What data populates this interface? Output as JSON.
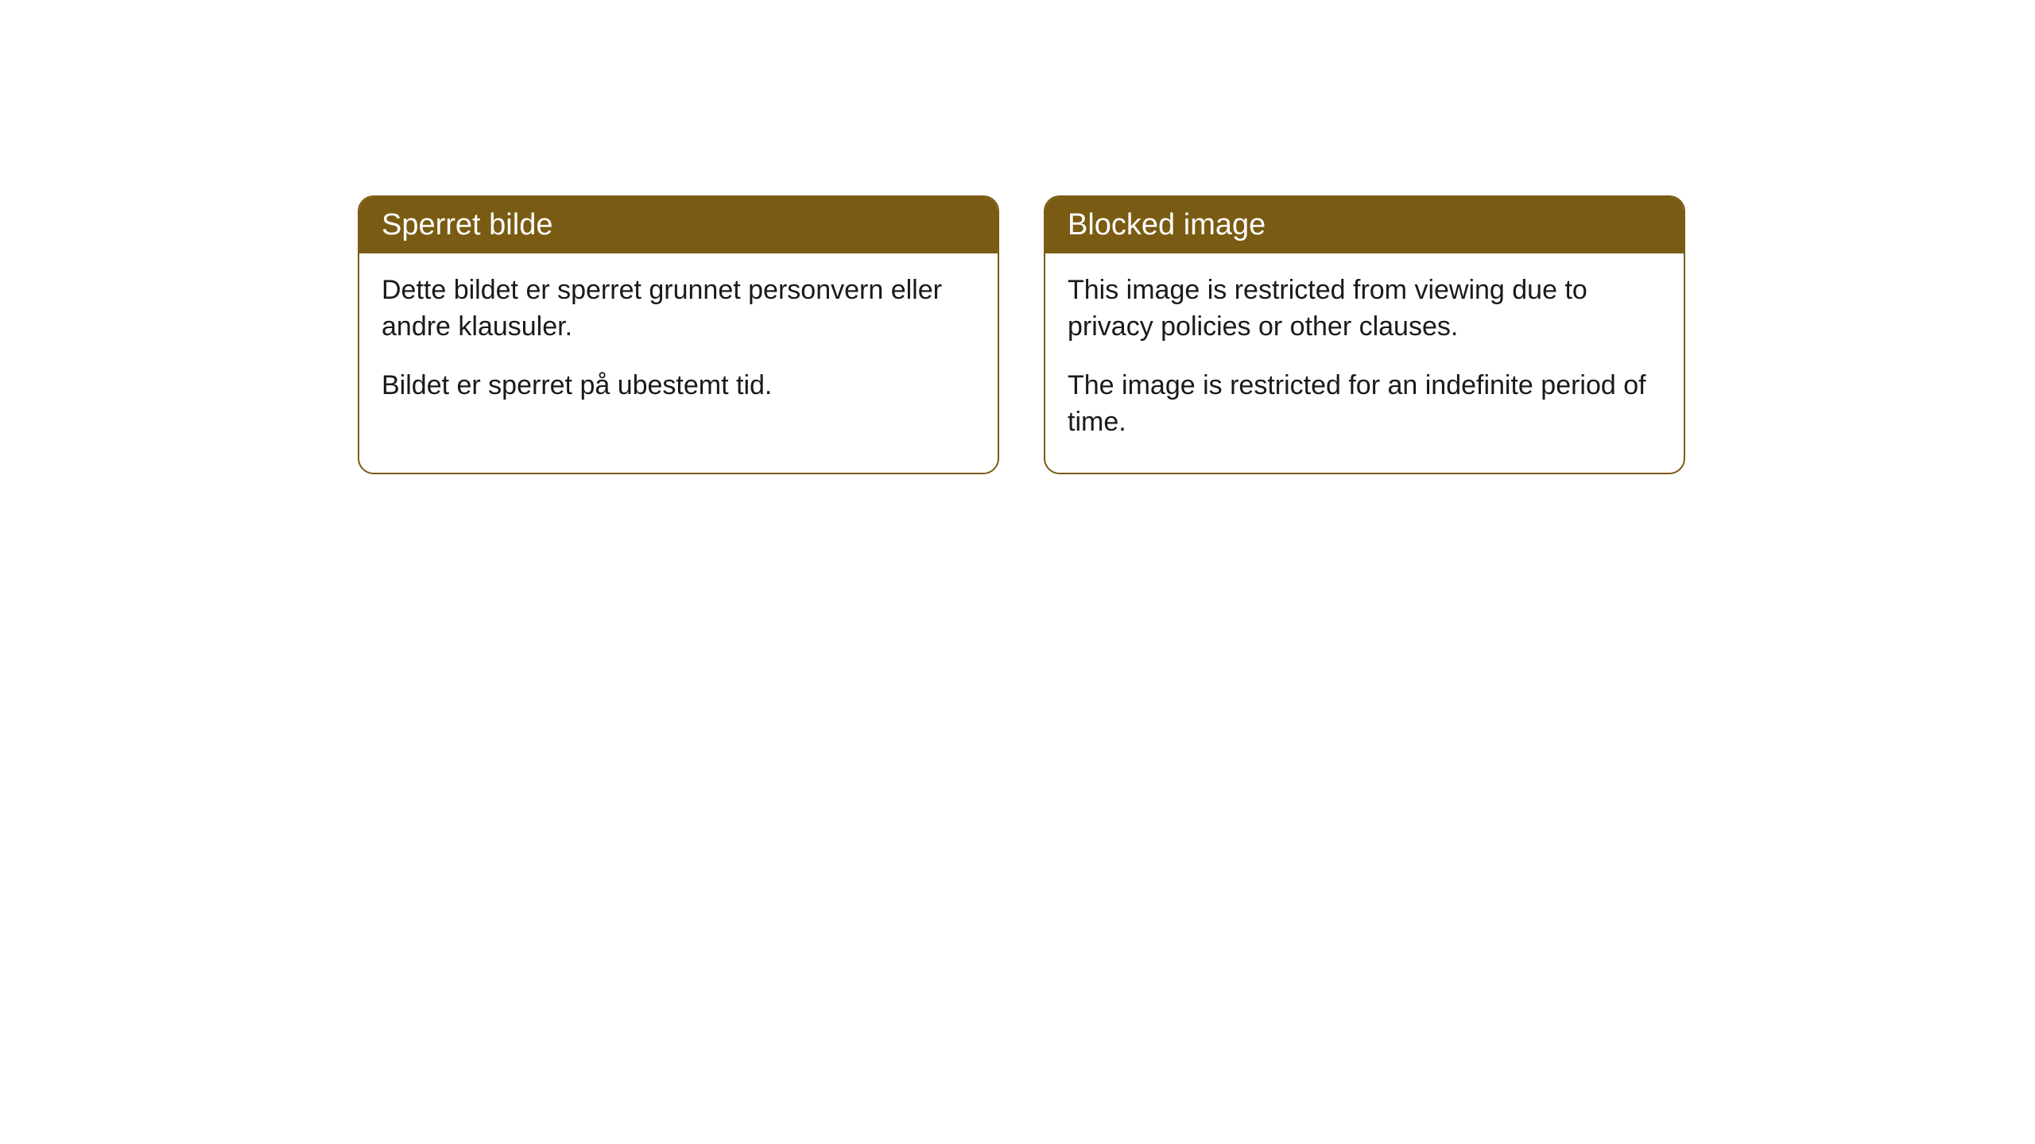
{
  "cards": [
    {
      "title": "Sperret bilde",
      "paragraph1": "Dette bildet er sperret grunnet personvern eller andre klausuler.",
      "paragraph2": "Bildet er sperret på ubestemt tid."
    },
    {
      "title": "Blocked image",
      "paragraph1": "This image is restricted from viewing due to privacy policies or other clauses.",
      "paragraph2": "The image is restricted for an indefinite period of time."
    }
  ],
  "style": {
    "header_bg": "#7a5b13",
    "header_color": "#ffffff",
    "border_color": "#7a5b13",
    "body_bg": "#ffffff",
    "text_color": "#1a1a1a",
    "border_radius": 20,
    "title_fontsize": 38,
    "body_fontsize": 34
  }
}
